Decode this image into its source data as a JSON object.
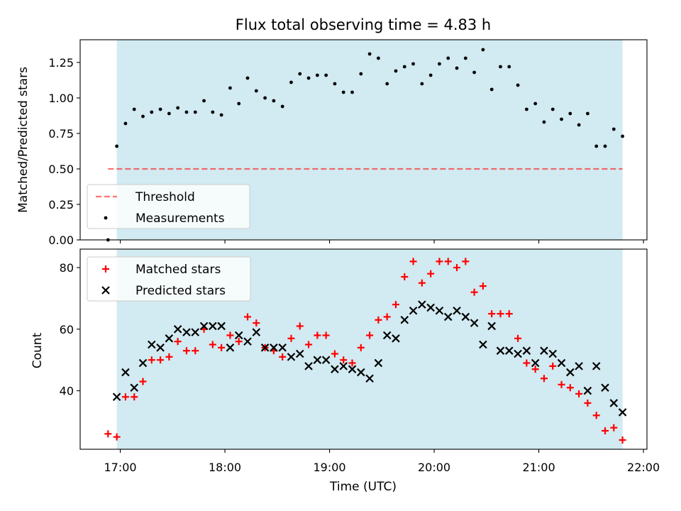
{
  "title": "Flux total observing time = 4.83 h",
  "colors": {
    "shade": "#add8e6",
    "threshold": "#ff0000",
    "measurements": "#000000",
    "matched": "#ff0000",
    "predicted": "#000000"
  },
  "chart_data": [
    {
      "type": "scatter",
      "panel": "top",
      "title": "Flux total observing time = 4.83 h",
      "xlabel": "",
      "ylabel": "Matched/Predicted stars",
      "xlim": [
        "16:37",
        "22:02"
      ],
      "ylim": [
        0,
        1.41
      ],
      "yticks": [
        "0.00",
        "0.25",
        "0.50",
        "0.75",
        "1.00",
        "1.25"
      ],
      "shaded_span": [
        "16:58",
        "21:48"
      ],
      "legend": [
        "Threshold",
        "Measurements"
      ],
      "legend_position": "lower-left",
      "threshold": {
        "name": "Threshold",
        "y": 0.5,
        "x_range": [
          "16:53",
          "21:48"
        ],
        "style": "dashed"
      },
      "series": [
        {
          "name": "Measurements",
          "x": [
            "16:53",
            "16:58",
            "17:03",
            "17:08",
            "17:13",
            "17:18",
            "17:23",
            "17:28",
            "17:33",
            "17:38",
            "17:43",
            "17:48",
            "17:53",
            "17:58",
            "18:03",
            "18:08",
            "18:13",
            "18:18",
            "18:23",
            "18:28",
            "18:33",
            "18:38",
            "18:43",
            "18:48",
            "18:53",
            "18:58",
            "19:03",
            "19:08",
            "19:13",
            "19:18",
            "19:23",
            "19:28",
            "19:33",
            "19:38",
            "19:43",
            "19:48",
            "19:53",
            "19:58",
            "20:03",
            "20:08",
            "20:13",
            "20:18",
            "20:23",
            "20:28",
            "20:33",
            "20:38",
            "20:43",
            "20:48",
            "20:53",
            "20:58",
            "21:03",
            "21:08",
            "21:13",
            "21:18",
            "21:23",
            "21:28",
            "21:33",
            "21:38",
            "21:43",
            "21:48"
          ],
          "y": [
            0.0,
            0.66,
            0.82,
            0.92,
            0.87,
            0.9,
            0.92,
            0.89,
            0.93,
            0.9,
            0.9,
            0.98,
            0.9,
            0.88,
            1.07,
            0.96,
            1.14,
            1.05,
            1.0,
            0.98,
            0.94,
            1.11,
            1.17,
            1.14,
            1.16,
            1.16,
            1.1,
            1.04,
            1.04,
            1.17,
            1.31,
            1.28,
            1.1,
            1.19,
            1.22,
            1.24,
            1.1,
            1.16,
            1.24,
            1.28,
            1.21,
            1.28,
            1.18,
            1.34,
            1.06,
            1.22,
            1.22,
            1.09,
            0.92,
            0.96,
            0.83,
            0.92,
            0.85,
            0.89,
            0.81,
            0.89,
            0.66,
            0.66,
            0.78,
            0.73
          ]
        }
      ]
    },
    {
      "type": "scatter",
      "panel": "bottom",
      "xlabel": "Time (UTC)",
      "ylabel": "Count",
      "xlim": [
        "16:37",
        "22:02"
      ],
      "ylim": [
        21,
        86
      ],
      "xticks": [
        "17:00",
        "18:00",
        "19:00",
        "20:00",
        "21:00",
        "22:00"
      ],
      "yticks": [
        "40",
        "60",
        "80"
      ],
      "shaded_span": [
        "16:58",
        "21:48"
      ],
      "legend": [
        "Matched stars",
        "Predicted stars"
      ],
      "legend_position": "upper-left",
      "series": [
        {
          "name": "Matched stars",
          "marker": "plus",
          "x": [
            "16:53",
            "16:58",
            "17:03",
            "17:08",
            "17:13",
            "17:18",
            "17:23",
            "17:28",
            "17:33",
            "17:38",
            "17:43",
            "17:48",
            "17:53",
            "17:58",
            "18:03",
            "18:08",
            "18:13",
            "18:18",
            "18:23",
            "18:28",
            "18:33",
            "18:38",
            "18:43",
            "18:48",
            "18:53",
            "18:58",
            "19:03",
            "19:08",
            "19:13",
            "19:18",
            "19:23",
            "19:28",
            "19:33",
            "19:38",
            "19:43",
            "19:48",
            "19:53",
            "19:58",
            "20:03",
            "20:08",
            "20:13",
            "20:18",
            "20:23",
            "20:28",
            "20:33",
            "20:38",
            "20:43",
            "20:48",
            "20:53",
            "20:58",
            "21:03",
            "21:08",
            "21:13",
            "21:18",
            "21:23",
            "21:28",
            "21:33",
            "21:38",
            "21:43",
            "21:48"
          ],
          "y": [
            26,
            25,
            38,
            38,
            43,
            50,
            50,
            51,
            56,
            53,
            53,
            60,
            55,
            54,
            58,
            56,
            64,
            62,
            54,
            53,
            51,
            57,
            61,
            55,
            58,
            58,
            52,
            50,
            49,
            54,
            58,
            63,
            64,
            68,
            77,
            82,
            75,
            78,
            82,
            82,
            80,
            82,
            72,
            74,
            65,
            65,
            65,
            57,
            49,
            47,
            44,
            48,
            42,
            41,
            39,
            36,
            32,
            27,
            28,
            24
          ]
        },
        {
          "name": "Predicted stars",
          "marker": "x",
          "x": [
            "16:58",
            "17:03",
            "17:08",
            "17:13",
            "17:18",
            "17:23",
            "17:28",
            "17:33",
            "17:38",
            "17:43",
            "17:48",
            "17:53",
            "17:58",
            "18:03",
            "18:08",
            "18:13",
            "18:18",
            "18:23",
            "18:28",
            "18:33",
            "18:38",
            "18:43",
            "18:48",
            "18:53",
            "18:58",
            "19:03",
            "19:08",
            "19:13",
            "19:18",
            "19:23",
            "19:28",
            "19:33",
            "19:38",
            "19:43",
            "19:48",
            "19:53",
            "19:58",
            "20:03",
            "20:08",
            "20:13",
            "20:18",
            "20:23",
            "20:28",
            "20:33",
            "20:38",
            "20:43",
            "20:48",
            "20:53",
            "20:58",
            "21:03",
            "21:08",
            "21:13",
            "21:18",
            "21:23",
            "21:28",
            "21:33",
            "21:38",
            "21:43",
            "21:48"
          ],
          "y": [
            38,
            46,
            41,
            49,
            55,
            54,
            57,
            60,
            59,
            59,
            61,
            61,
            61,
            54,
            58,
            56,
            59,
            54,
            54,
            54,
            51,
            52,
            48,
            50,
            50,
            47,
            48,
            47,
            46,
            44,
            49,
            58,
            57,
            63,
            66,
            68,
            67,
            66,
            64,
            66,
            64,
            62,
            55,
            61,
            53,
            53,
            52,
            53,
            49,
            53,
            52,
            49,
            46,
            48,
            40,
            48,
            41,
            36,
            33
          ]
        }
      ]
    }
  ]
}
